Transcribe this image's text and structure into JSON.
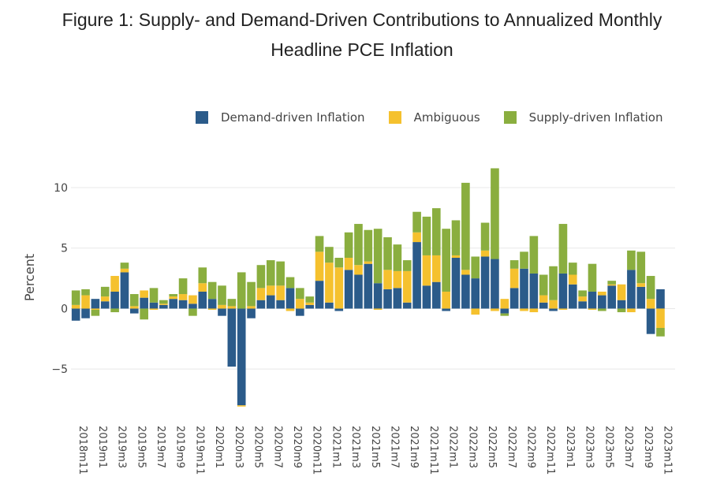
{
  "title_line1": "Figure 1: Supply- and Demand-Driven Contributions to Annualized Monthly",
  "title_line2": "Headline PCE Inflation",
  "chart_data": {
    "type": "bar",
    "stacked": true,
    "ylabel": "Percent",
    "ylim": [
      -8.9,
      13.0
    ],
    "yticks": [
      -5,
      0,
      5,
      10
    ],
    "ytick_labels": [
      "−5",
      "0",
      "5",
      "10"
    ],
    "grid": true,
    "legend_position": "top-right",
    "x": [
      "2018m11",
      "2018m12",
      "2019m1",
      "2019m2",
      "2019m3",
      "2019m4",
      "2019m5",
      "2019m6",
      "2019m7",
      "2019m8",
      "2019m9",
      "2019m10",
      "2019m11",
      "2019m12",
      "2020m1",
      "2020m2",
      "2020m3",
      "2020m4",
      "2020m5",
      "2020m6",
      "2020m7",
      "2020m8",
      "2020m9",
      "2020m10",
      "2020m11",
      "2020m12",
      "2021m1",
      "2021m2",
      "2021m3",
      "2021m4",
      "2021m5",
      "2021m6",
      "2021m7",
      "2021m8",
      "2021m9",
      "2021m10",
      "2021m11",
      "2021m12",
      "2022m1",
      "2022m2",
      "2022m3",
      "2022m4",
      "2022m5",
      "2022m6",
      "2022m7",
      "2022m8",
      "2022m9",
      "2022m10",
      "2022m11",
      "2022m12",
      "2023m1",
      "2023m2",
      "2023m3",
      "2023m4",
      "2023m5",
      "2023m6",
      "2023m7",
      "2023m8",
      "2023m9",
      "2023m10",
      "2023m11",
      "2023m12"
    ],
    "x_tick_labels": [
      "2018m11",
      "2019m1",
      "2019m3",
      "2019m5",
      "2019m7",
      "2019m9",
      "2019m11",
      "2020m1",
      "2020m3",
      "2020m5",
      "2020m7",
      "2020m9",
      "2020m11",
      "2021m1",
      "2021m3",
      "2021m5",
      "2021m7",
      "2021m9",
      "2021m11",
      "2022m1",
      "2022m3",
      "2022m5",
      "2022m7",
      "2022m9",
      "2022m11",
      "2023m1",
      "2023m3",
      "2023m5",
      "2023m7",
      "2023m9",
      "2023m11"
    ],
    "colors": {
      "demand": "#2b5b8a",
      "ambiguous": "#f5c12e",
      "supply": "#8aae3f",
      "grid": "#e8e8e8"
    },
    "series": [
      {
        "name": "Demand-driven Inflation",
        "key": "demand",
        "values": [
          -1.0,
          -0.8,
          0.8,
          0.6,
          1.4,
          3.0,
          -0.4,
          0.9,
          0.5,
          0.3,
          0.8,
          0.7,
          0.4,
          1.4,
          0.8,
          -0.6,
          -4.8,
          -8.0,
          -0.8,
          0.7,
          1.1,
          0.7,
          1.7,
          -0.6,
          0.3,
          2.3,
          0.5,
          -0.2,
          3.2,
          2.8,
          3.7,
          2.1,
          1.6,
          1.7,
          0.5,
          5.5,
          1.9,
          2.2,
          -0.2,
          4.2,
          2.8,
          2.5,
          4.3,
          4.1,
          -0.4,
          1.7,
          3.3,
          2.9,
          0.5,
          -0.2,
          2.9,
          2.0,
          0.6,
          1.4,
          1.1,
          1.9,
          0.7,
          3.2,
          1.8,
          -2.1,
          1.6,
          0
        ]
      },
      {
        "name": "Ambiguous",
        "key": "ambiguous",
        "values": [
          0.3,
          1.1,
          -0.1,
          0.4,
          1.3,
          0.3,
          0.2,
          0.6,
          -0.1,
          0.1,
          0.2,
          0.5,
          0.7,
          0.7,
          -0.1,
          0.3,
          0.2,
          -0.1,
          0.2,
          1.0,
          0.8,
          1.2,
          -0.2,
          0.8,
          0.2,
          2.4,
          3.3,
          3.4,
          1.0,
          0.8,
          0.2,
          -0.1,
          1.6,
          1.4,
          2.6,
          0.8,
          2.5,
          2.2,
          1.4,
          0.2,
          0.4,
          -0.5,
          0.5,
          -0.2,
          0.8,
          1.6,
          -0.2,
          -0.3,
          0.6,
          0.7,
          -0.1,
          0.8,
          0.4,
          -0.1,
          0.3,
          0.1,
          1.3,
          -0.3,
          0.3,
          0.8,
          -1.6,
          0
        ]
      },
      {
        "name": "Supply-driven Inflation",
        "key": "supply",
        "values": [
          1.2,
          0.5,
          -0.5,
          0.8,
          -0.3,
          0.5,
          1.0,
          -0.9,
          1.2,
          0.3,
          0.2,
          1.3,
          -0.6,
          1.3,
          1.4,
          1.6,
          0.6,
          3.0,
          2.0,
          1.9,
          2.1,
          2.0,
          0.9,
          0.9,
          0.5,
          1.3,
          1.3,
          0.8,
          2.1,
          3.4,
          2.6,
          4.5,
          2.7,
          2.2,
          0.9,
          1.7,
          3.2,
          3.9,
          5.2,
          2.9,
          7.2,
          1.8,
          2.3,
          7.5,
          -0.2,
          0.7,
          1.4,
          3.1,
          1.7,
          2.8,
          4.1,
          1.0,
          0.5,
          2.3,
          -0.2,
          0.3,
          -0.3,
          1.6,
          2.6,
          1.9,
          -0.7,
          0
        ]
      }
    ]
  }
}
